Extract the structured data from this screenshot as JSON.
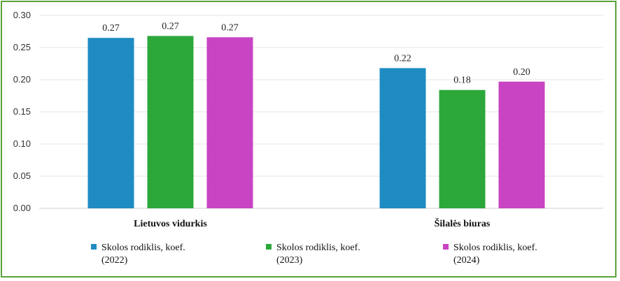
{
  "chart_data": {
    "type": "bar",
    "title": "",
    "xlabel": "",
    "ylabel": "",
    "ylim": [
      0,
      0.3
    ],
    "yticks": [
      "0.00",
      "0.05",
      "0.10",
      "0.15",
      "0.20",
      "0.25",
      "0.30"
    ],
    "grid": true,
    "legend_position": "bottom",
    "categories": [
      "Lietuvos vidurkis",
      "Šilalės biuras"
    ],
    "series": [
      {
        "name": "Skolos rodiklis, koef. (2022)",
        "name_lines": [
          "Skolos rodiklis, koef.",
          "(2022)"
        ],
        "color": "#1f8bc3",
        "values": [
          0.265,
          0.218
        ],
        "labels": [
          "0.27",
          "0.22"
        ]
      },
      {
        "name": "Skolos rodiklis, koef. (2023)",
        "name_lines": [
          "Skolos rodiklis, koef.",
          "(2023)"
        ],
        "color": "#2ca83a",
        "values": [
          0.268,
          0.184
        ],
        "labels": [
          "0.27",
          "0.18"
        ]
      },
      {
        "name": "Skolos rodiklis, koef. (2024)",
        "name_lines": [
          "Skolos rodiklis, koef.",
          "(2024)"
        ],
        "color": "#c844c2",
        "values": [
          0.266,
          0.197
        ],
        "labels": [
          "0.27",
          "0.20"
        ]
      }
    ]
  }
}
